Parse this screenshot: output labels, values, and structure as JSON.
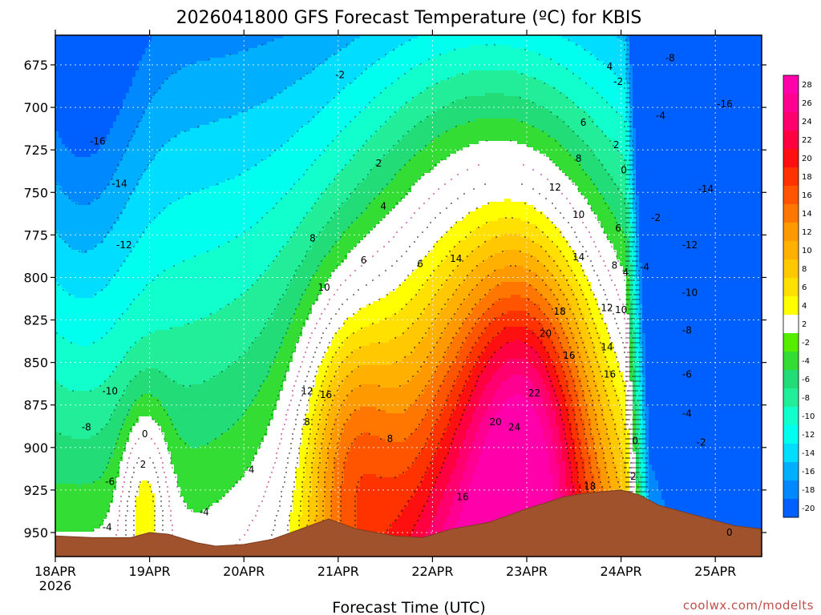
{
  "chart_data": {
    "type": "heatmap",
    "title": "2026041800 GFS Forecast Temperature (ºC) for KBIS",
    "xlabel": "Forecast Time (UTC)",
    "ylabel": "",
    "credit": "coolwx.com/modelts",
    "x_ticks": [
      {
        "label": "18APR",
        "sublabel": "2026",
        "day": 0
      },
      {
        "label": "19APR",
        "day": 1
      },
      {
        "label": "20APR",
        "day": 2
      },
      {
        "label": "21APR",
        "day": 3
      },
      {
        "label": "22APR",
        "day": 4
      },
      {
        "label": "23APR",
        "day": 5
      },
      {
        "label": "24APR",
        "day": 6
      },
      {
        "label": "25APR",
        "day": 7
      }
    ],
    "xlim_days": [
      0,
      7.5
    ],
    "y_axis": {
      "ticks": [
        675,
        700,
        725,
        750,
        775,
        800,
        825,
        850,
        875,
        900,
        925,
        950
      ],
      "range_hpa": [
        660,
        960
      ],
      "inverted": true
    },
    "colorbar": {
      "levels": [
        28,
        26,
        24,
        22,
        20,
        18,
        16,
        14,
        12,
        10,
        8,
        6,
        4,
        2,
        -2,
        -4,
        -6,
        -8,
        -10,
        -12,
        -14,
        -16,
        -18,
        -20
      ],
      "colors": [
        "#ff00aa",
        "#ff0090",
        "#ff006e",
        "#ff0040",
        "#ff1010",
        "#ff3300",
        "#ff5500",
        "#ff7700",
        "#ff9900",
        "#ffb000",
        "#ffc800",
        "#ffe000",
        "#ffff00",
        "#ffffff",
        "#55ee00",
        "#33dd33",
        "#22dd77",
        "#22ee99",
        "#11ffcc",
        "#00ffee",
        "#00ddff",
        "#00b0ff",
        "#0088ff",
        "#0060ff"
      ]
    },
    "surface_pressure_hpa": [
      [
        0,
        952
      ],
      [
        0.4,
        953
      ],
      [
        0.8,
        953
      ],
      [
        1.0,
        950
      ],
      [
        1.2,
        951
      ],
      [
        1.5,
        956
      ],
      [
        1.7,
        958
      ],
      [
        2.0,
        957
      ],
      [
        2.3,
        954
      ],
      [
        2.7,
        946
      ],
      [
        2.9,
        942
      ],
      [
        3.2,
        948
      ],
      [
        3.6,
        952
      ],
      [
        3.9,
        953
      ],
      [
        4.2,
        948
      ],
      [
        4.6,
        944
      ],
      [
        5.0,
        936
      ],
      [
        5.4,
        929
      ],
      [
        5.6,
        927
      ],
      [
        5.8,
        926
      ],
      [
        6.0,
        925
      ],
      [
        6.2,
        928
      ],
      [
        6.4,
        934
      ],
      [
        6.8,
        940
      ],
      [
        7.0,
        943
      ],
      [
        7.2,
        946
      ],
      [
        7.5,
        948
      ]
    ],
    "contour_labels": [
      {
        "text": "-16",
        "day": 0.45,
        "p": 720
      },
      {
        "text": "-14",
        "day": 0.68,
        "p": 745
      },
      {
        "text": "-12",
        "day": 0.73,
        "p": 781
      },
      {
        "text": "-10",
        "day": 0.58,
        "p": 867
      },
      {
        "text": "-8",
        "day": 0.33,
        "p": 888
      },
      {
        "text": "-6",
        "day": 0.58,
        "p": 920
      },
      {
        "text": "-4",
        "day": 0.55,
        "p": 947
      },
      {
        "text": "0",
        "day": 0.95,
        "p": 892
      },
      {
        "text": "2",
        "day": 0.93,
        "p": 910
      },
      {
        "text": "-4",
        "day": 1.58,
        "p": 938
      },
      {
        "text": "4",
        "day": 2.08,
        "p": 913
      },
      {
        "text": "-2",
        "day": 3.02,
        "p": 681
      },
      {
        "text": "2",
        "day": 3.43,
        "p": 733
      },
      {
        "text": "4",
        "day": 3.48,
        "p": 758
      },
      {
        "text": "6",
        "day": 3.27,
        "p": 790
      },
      {
        "text": "8",
        "day": 2.73,
        "p": 777
      },
      {
        "text": "10",
        "day": 2.85,
        "p": 806
      },
      {
        "text": "12",
        "day": 2.67,
        "p": 867
      },
      {
        "text": "16",
        "day": 2.87,
        "p": 869
      },
      {
        "text": "8",
        "day": 2.67,
        "p": 885
      },
      {
        "text": "8",
        "day": 3.55,
        "p": 895
      },
      {
        "text": "6",
        "day": 3.87,
        "p": 792
      },
      {
        "text": "14",
        "day": 4.25,
        "p": 789
      },
      {
        "text": "16",
        "day": 4.32,
        "p": 929
      },
      {
        "text": "20",
        "day": 4.67,
        "p": 885
      },
      {
        "text": "24",
        "day": 4.87,
        "p": 888
      },
      {
        "text": "22",
        "day": 5.08,
        "p": 868
      },
      {
        "text": "20",
        "day": 5.2,
        "p": 833
      },
      {
        "text": "18",
        "day": 5.35,
        "p": 820
      },
      {
        "text": "16",
        "day": 5.45,
        "p": 846
      },
      {
        "text": "12",
        "day": 5.3,
        "p": 747
      },
      {
        "text": "10",
        "day": 5.55,
        "p": 763
      },
      {
        "text": "14",
        "day": 5.55,
        "p": 788
      },
      {
        "text": "8",
        "day": 5.55,
        "p": 730
      },
      {
        "text": "6",
        "day": 5.6,
        "p": 709
      },
      {
        "text": "4",
        "day": 5.88,
        "p": 676
      },
      {
        "text": "-2",
        "day": 5.97,
        "p": 685
      },
      {
        "text": "2",
        "day": 5.95,
        "p": 722
      },
      {
        "text": "0",
        "day": 6.03,
        "p": 737
      },
      {
        "text": "6",
        "day": 5.97,
        "p": 771
      },
      {
        "text": "8",
        "day": 5.93,
        "p": 793
      },
      {
        "text": "4",
        "day": 6.05,
        "p": 797
      },
      {
        "text": "-4",
        "day": 6.25,
        "p": 794
      },
      {
        "text": "12",
        "day": 5.85,
        "p": 818
      },
      {
        "text": "10",
        "day": 6.0,
        "p": 819
      },
      {
        "text": "14",
        "day": 5.85,
        "p": 841
      },
      {
        "text": "16",
        "day": 5.88,
        "p": 857
      },
      {
        "text": "18",
        "day": 5.67,
        "p": 923
      },
      {
        "text": "0",
        "day": 6.15,
        "p": 896
      },
      {
        "text": "2",
        "day": 6.13,
        "p": 917
      },
      {
        "text": "-2",
        "day": 6.37,
        "p": 765
      },
      {
        "text": "-4",
        "day": 6.42,
        "p": 705
      },
      {
        "text": "-8",
        "day": 6.52,
        "p": 671
      },
      {
        "text": "-16",
        "day": 7.1,
        "p": 698
      },
      {
        "text": "-14",
        "day": 6.9,
        "p": 748
      },
      {
        "text": "-12",
        "day": 6.73,
        "p": 781
      },
      {
        "text": "-10",
        "day": 6.73,
        "p": 809
      },
      {
        "text": "-8",
        "day": 6.7,
        "p": 831
      },
      {
        "text": "-6",
        "day": 6.7,
        "p": 857
      },
      {
        "text": "-4",
        "day": 6.7,
        "p": 880
      },
      {
        "text": "-2",
        "day": 6.85,
        "p": 897
      },
      {
        "text": "0",
        "day": 7.15,
        "p": 950
      }
    ],
    "grid": true,
    "legend": "right"
  }
}
